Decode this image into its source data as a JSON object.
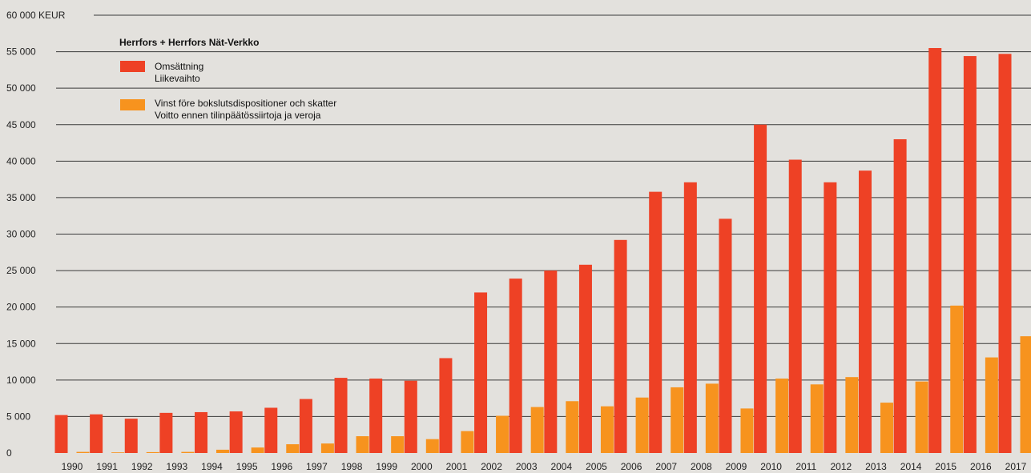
{
  "chart_data": {
    "type": "bar",
    "ylabel_unit": "KEUR",
    "ylim": [
      0,
      60000
    ],
    "yticks": [
      "0",
      "5 000",
      "10 000",
      "15 000",
      "20 000",
      "25 000",
      "30 000",
      "35 000",
      "40 000",
      "45 000",
      "50 000",
      "55 000",
      "60 000"
    ],
    "grid": true,
    "legend_title": "Herrfors + Herrfors Nät-Verkko",
    "legend_position": "top-left",
    "categories": [
      "1990",
      "1991",
      "1992",
      "1993",
      "1994",
      "1995",
      "1996",
      "1997",
      "1998",
      "1999",
      "2000",
      "2001",
      "2002",
      "2003",
      "2004",
      "2005",
      "2006",
      "2007",
      "2008",
      "2009",
      "2010",
      "2011",
      "2012",
      "2013",
      "2014",
      "2015",
      "2016",
      "2017"
    ],
    "series": [
      {
        "name_line1": "Omsättning",
        "name_line2": "Liikevaihto",
        "color": "#ee4125",
        "values": [
          5200,
          5300,
          4700,
          5500,
          5600,
          5700,
          6200,
          7400,
          10300,
          10200,
          9900,
          13000,
          22000,
          23900,
          25000,
          25800,
          29200,
          35800,
          37100,
          32100,
          45000,
          40200,
          37100,
          38700,
          43000,
          55500,
          54400,
          54700
        ]
      },
      {
        "name_line1": "Vinst före bokslutsdispositioner och skatter",
        "name_line2": "Voitto ennen tilinpäätössiirtoja ja veroja",
        "color": "#f7931e",
        "values": [
          150,
          50,
          120,
          150,
          450,
          750,
          1200,
          1300,
          2300,
          2300,
          1900,
          3000,
          5100,
          6300,
          7100,
          6400,
          7600,
          9000,
          9500,
          6100,
          10200,
          9400,
          10400,
          6900,
          9800,
          20200,
          13100,
          16000
        ]
      }
    ]
  }
}
